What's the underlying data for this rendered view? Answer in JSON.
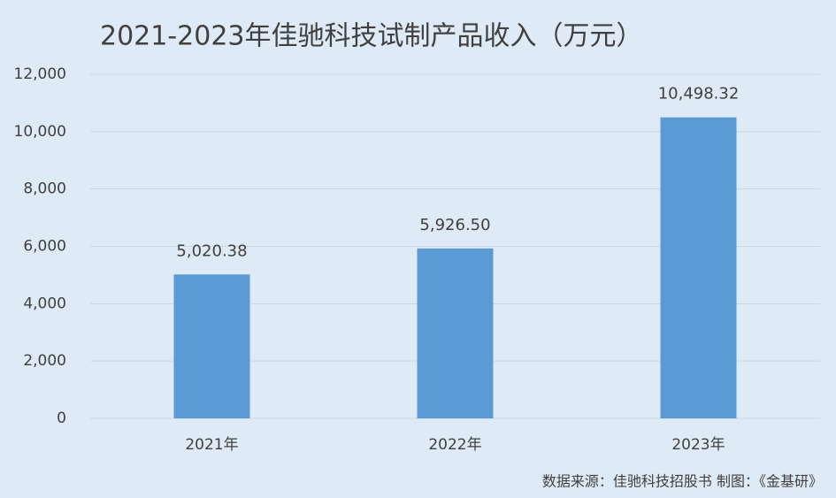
{
  "chart_data": {
    "type": "bar",
    "title": "2021-2023年佳驰科技试制产品收入（万元）",
    "categories": [
      "2021年",
      "2022年",
      "2023年"
    ],
    "values": [
      5020.38,
      5926.5,
      10498.32
    ],
    "value_labels": [
      "5,020.38",
      "5,926.50",
      "10,498.32"
    ],
    "color": "#5b9bd5",
    "ylim": [
      0,
      12000
    ],
    "yticks": [
      0,
      {
        "value": 2000,
        "label": "2,000"
      },
      {
        "value": 4000,
        "label": "4,000"
      },
      {
        "value": 6000,
        "label": "6,000"
      },
      {
        "value": 8000,
        "label": "8,000"
      },
      {
        "value": 10000,
        "label": "10,000"
      },
      {
        "value": 12000,
        "label": "12,000"
      }
    ],
    "grid": true,
    "source": "数据来源：佳驰科技招股书  制图：《金基研》"
  }
}
